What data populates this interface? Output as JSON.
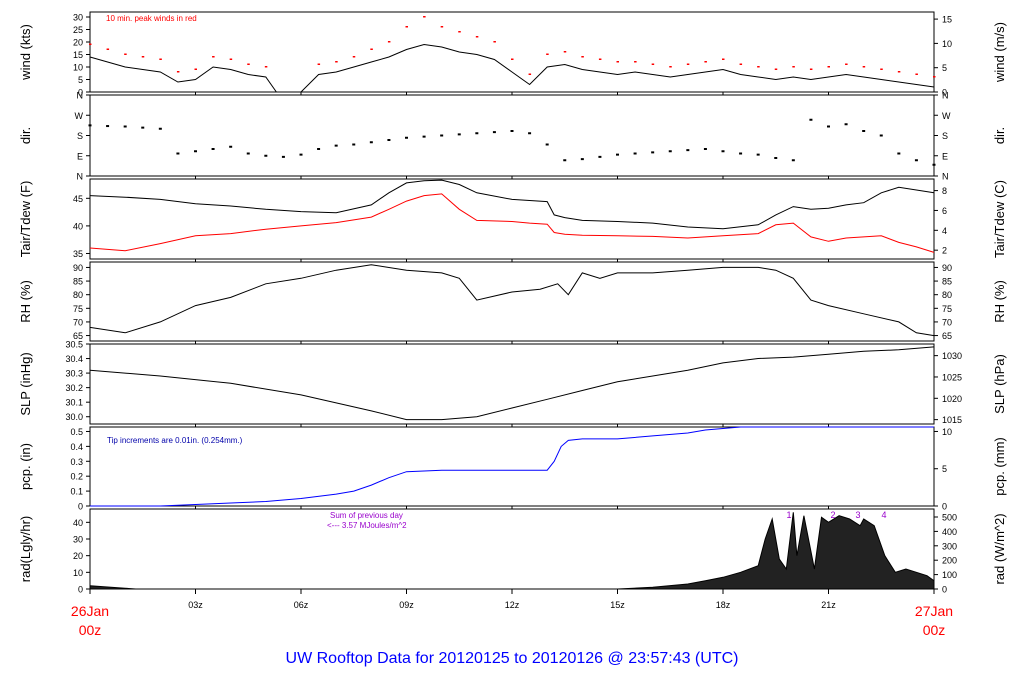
{
  "title": "UW Rooftop Data for 20120125  to  20120126 @ 23:57:43  (UTC)",
  "time_axis": {
    "start_label": [
      "26Jan",
      "00z"
    ],
    "end_label": [
      "27Jan",
      "00z"
    ],
    "ticks": [
      "03z",
      "06z",
      "09z",
      "12z",
      "15z",
      "18z",
      "21z"
    ],
    "range_hours": [
      0,
      24
    ]
  },
  "chart_data": [
    {
      "type": "line",
      "name": "wind",
      "ylabel": "wind (kts)",
      "ylabel_right": "wind (m/s)",
      "ylim": [
        0,
        32
      ],
      "ticks_left": [
        0,
        5,
        10,
        15,
        20,
        25,
        30
      ],
      "ticks_right": [
        0,
        5,
        10,
        15
      ],
      "annotation": "10 min. peak winds in red",
      "x": [
        0,
        0.5,
        1,
        1.5,
        2,
        2.5,
        3,
        3.5,
        4,
        4.5,
        5,
        5.3,
        5.5,
        6,
        6.5,
        7,
        7.5,
        8,
        8.5,
        9,
        9.5,
        10,
        10.5,
        11,
        11.5,
        12,
        12.5,
        13,
        13.5,
        14,
        14.5,
        15,
        15.5,
        16,
        16.5,
        17,
        17.5,
        18,
        18.5,
        19,
        19.5,
        20,
        20.5,
        21,
        21.5,
        22,
        22.5,
        23,
        23.5,
        24
      ],
      "series": [
        {
          "values": [
            14,
            12,
            10,
            9,
            8,
            4,
            5,
            10,
            9,
            7,
            6,
            0,
            0,
            0,
            7,
            8,
            10,
            12,
            14,
            17,
            19,
            18,
            16,
            15,
            13,
            8,
            3,
            10,
            11,
            9,
            8,
            7,
            8,
            7,
            6,
            7,
            8,
            9,
            7,
            6,
            5,
            6,
            5,
            6,
            7,
            6,
            5,
            4,
            3,
            2
          ]
        },
        {
          "color": "#ff0000",
          "values": [
            19,
            17,
            15,
            14,
            13,
            8,
            9,
            14,
            13,
            11,
            10,
            0,
            0,
            0,
            11,
            12,
            14,
            17,
            20,
            26,
            30,
            26,
            24,
            22,
            20,
            13,
            7,
            15,
            16,
            14,
            13,
            12,
            12,
            11,
            10,
            11,
            12,
            13,
            11,
            10,
            9,
            10,
            9,
            10,
            11,
            10,
            9,
            8,
            7,
            6
          ]
        }
      ]
    },
    {
      "type": "scatter",
      "name": "direction",
      "ylabel": "dir.",
      "ylabel_right": "dir.",
      "ylim": [
        0,
        360
      ],
      "ticks": [
        "N",
        "E",
        "S",
        "W",
        "N"
      ],
      "x": [
        0,
        0.5,
        1,
        1.5,
        2,
        2.5,
        3,
        3.5,
        4,
        4.5,
        5,
        5.5,
        6,
        6.5,
        7,
        7.5,
        8,
        8.5,
        9,
        9.5,
        10,
        10.5,
        11,
        11.5,
        12,
        12.5,
        13,
        13.5,
        14,
        14.5,
        15,
        15.5,
        16,
        16.5,
        17,
        17.5,
        18,
        18.5,
        19,
        19.5,
        20,
        20.5,
        21,
        21.5,
        22,
        22.5,
        23,
        23.5,
        24
      ],
      "values": [
        225,
        222,
        220,
        215,
        210,
        100,
        110,
        120,
        130,
        100,
        90,
        85,
        95,
        120,
        135,
        140,
        150,
        160,
        170,
        175,
        180,
        185,
        190,
        195,
        200,
        190,
        140,
        70,
        75,
        85,
        95,
        100,
        105,
        110,
        115,
        120,
        110,
        100,
        95,
        80,
        70,
        250,
        220,
        230,
        200,
        180,
        100,
        70,
        50
      ]
    },
    {
      "type": "line",
      "name": "temperature",
      "ylabel": "Tair/Tdew (F)",
      "ylabel_right": "Tair/Tdew (C)",
      "ylim": [
        34,
        48.5
      ],
      "ticks_left": [
        35,
        40,
        45
      ],
      "ticks_right": [
        2,
        4,
        6,
        8
      ],
      "x": [
        0,
        1,
        2,
        3,
        4,
        5,
        6,
        7,
        8,
        8.5,
        9,
        9.5,
        10,
        10.5,
        11,
        12,
        12.5,
        13,
        13.2,
        13.5,
        14,
        15,
        16,
        17,
        18,
        19,
        19.5,
        20,
        20.5,
        21,
        21.5,
        22,
        22.5,
        23,
        23.5,
        24
      ],
      "series": [
        {
          "values": [
            45.5,
            45.2,
            44.8,
            44.0,
            43.6,
            43.0,
            42.6,
            42.4,
            43.8,
            46.0,
            47.8,
            48.2,
            48.3,
            47.5,
            46.0,
            44.8,
            44.6,
            44.4,
            42.0,
            41.5,
            41.0,
            40.8,
            40.5,
            39.8,
            39.5,
            40.2,
            42.0,
            43.5,
            43.0,
            43.2,
            43.8,
            44.2,
            46.0,
            47.0,
            46.5,
            46.0
          ]
        },
        {
          "values": [
            36.0,
            35.5,
            36.8,
            38.2,
            38.6,
            39.4,
            40.0,
            40.6,
            41.6,
            43.0,
            44.5,
            45.5,
            45.8,
            43.0,
            41.0,
            40.8,
            40.5,
            40.3,
            38.8,
            38.5,
            38.3,
            38.2,
            38.1,
            37.8,
            38.2,
            38.6,
            40.2,
            40.5,
            38.0,
            37.2,
            37.8,
            38.0,
            38.2,
            37.0,
            36.2,
            35.2
          ]
        }
      ]
    },
    {
      "type": "line",
      "name": "relative-humidity",
      "ylabel": "RH (%)",
      "ylabel_right": "RH (%)",
      "ylim": [
        63,
        92
      ],
      "ticks": [
        65,
        70,
        75,
        80,
        85,
        90
      ],
      "x": [
        0,
        1,
        2,
        3,
        4,
        5,
        6,
        7,
        8,
        9,
        10,
        10.5,
        11,
        12,
        12.8,
        13.3,
        13.6,
        14,
        14.5,
        15,
        16,
        17,
        18,
        19,
        19.5,
        20,
        20.5,
        21,
        22,
        23,
        23.5,
        24
      ],
      "series": [
        {
          "values": [
            68,
            66,
            70,
            76,
            79,
            84,
            86,
            89,
            91,
            89,
            88,
            86,
            78,
            81,
            82,
            84,
            80,
            88,
            86,
            88,
            88,
            89,
            90,
            90,
            89,
            86,
            78,
            76,
            73,
            70,
            66,
            65
          ]
        }
      ]
    },
    {
      "type": "line",
      "name": "sea-level-pressure",
      "ylabel": "SLP (inHg)",
      "ylabel_right": "SLP (hPa)",
      "ylim": [
        29.95,
        30.5
      ],
      "ticks_left": [
        30.0,
        30.1,
        30.2,
        30.3,
        30.4,
        30.5
      ],
      "ticks_right": [
        1015,
        1020,
        1025,
        1030
      ],
      "x": [
        0,
        2,
        4,
        6,
        8,
        9,
        10,
        11,
        12,
        13,
        14,
        15,
        16,
        17,
        18,
        19,
        20,
        21,
        22,
        23,
        24
      ],
      "series": [
        {
          "values": [
            30.32,
            30.28,
            30.23,
            30.15,
            30.04,
            29.98,
            29.98,
            30.0,
            30.06,
            30.12,
            30.18,
            30.24,
            30.28,
            30.32,
            30.37,
            30.4,
            30.41,
            30.43,
            30.45,
            30.46,
            30.48
          ]
        }
      ]
    },
    {
      "type": "line",
      "name": "precipitation",
      "ylabel": "pcp. (in)",
      "ylabel_right": "pcp. (mm)",
      "ylim": [
        0,
        0.53
      ],
      "ticks_left": [
        0,
        0.1,
        0.2,
        0.3,
        0.4,
        0.5
      ],
      "ticks_right": [
        0,
        5,
        10
      ],
      "annotation": "Tip increments are 0.01in. (0.254mm.)",
      "x": [
        0,
        2,
        3,
        4,
        5,
        6,
        7,
        7.5,
        8,
        8.5,
        9,
        10,
        11,
        12,
        13,
        13.2,
        13.4,
        13.6,
        14,
        15,
        16,
        17,
        17.5,
        18,
        18.5,
        19,
        20,
        22,
        24
      ],
      "series": [
        {
          "values": [
            0,
            0,
            0.01,
            0.02,
            0.03,
            0.05,
            0.08,
            0.1,
            0.14,
            0.19,
            0.23,
            0.24,
            0.24,
            0.24,
            0.24,
            0.3,
            0.4,
            0.44,
            0.45,
            0.45,
            0.47,
            0.49,
            0.51,
            0.52,
            0.53,
            0.53,
            0.53,
            0.53,
            0.53
          ]
        }
      ]
    },
    {
      "type": "area",
      "name": "radiation",
      "ylabel": "rad(Lgly/hr)",
      "ylabel_right": "rad (W/m^2)",
      "ylim": [
        0,
        48
      ],
      "ticks_left": [
        0,
        10,
        20,
        30,
        40
      ],
      "ticks_right": [
        0,
        100,
        200,
        300,
        400,
        500
      ],
      "annotations": [
        "Sum of previous day",
        "<--- 3.57 MJoules/m^2"
      ],
      "markers": [
        "1",
        "2",
        "3",
        "4"
      ],
      "x": [
        0,
        0.3,
        0.6,
        1,
        1.3,
        15,
        16,
        17,
        17.5,
        18,
        18.5,
        19,
        19.2,
        19.4,
        19.6,
        19.8,
        20,
        20.1,
        20.3,
        20.6,
        20.8,
        21,
        21.3,
        21.6,
        21.9,
        22,
        22.3,
        22.6,
        22.9,
        23.2,
        23.5,
        23.8,
        24
      ],
      "series": [
        {
          "values": [
            2,
            1.5,
            1,
            0.5,
            0,
            0,
            1,
            3,
            5,
            7,
            10,
            14,
            30,
            42,
            18,
            12,
            46,
            20,
            44,
            12,
            43,
            40,
            44,
            42,
            38,
            42,
            38,
            20,
            10,
            12,
            10,
            8,
            5
          ]
        }
      ]
    }
  ]
}
